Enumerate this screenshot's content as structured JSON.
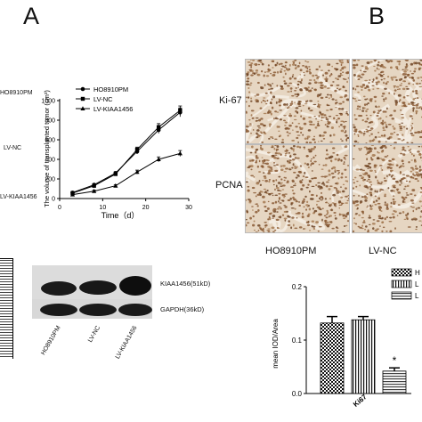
{
  "panels": {
    "a": "A",
    "b": "B"
  },
  "row_labels": [
    "HO8910PM",
    "LV-NC",
    "LV-KIAA1456"
  ],
  "growth": {
    "chart_data": {
      "type": "line",
      "xlabel": "Time（d）",
      "ylabel": "The volume of transplanted tumor (cm³)",
      "xlim": [
        0,
        30
      ],
      "ylim": [
        0,
        1000
      ],
      "xticks": [
        "0",
        "10",
        "20",
        "30"
      ],
      "yticks": [
        "0",
        "200",
        "400",
        "600",
        "800",
        "1000"
      ],
      "legend_position": "top-left",
      "x": [
        3,
        8,
        13,
        18,
        23,
        28
      ],
      "series": [
        {
          "name": "HO8910PM",
          "marker": "circle",
          "values": [
            60,
            140,
            260,
            480,
            700,
            880
          ],
          "errors": [
            10,
            12,
            15,
            25,
            35,
            45
          ]
        },
        {
          "name": "LV-NC",
          "marker": "square",
          "values": [
            55,
            130,
            250,
            500,
            730,
            900
          ],
          "errors": [
            10,
            12,
            15,
            25,
            35,
            45
          ]
        },
        {
          "name": "LV-KIAA1456",
          "marker": "triangle",
          "values": [
            40,
            75,
            130,
            270,
            400,
            460
          ],
          "errors": [
            8,
            10,
            12,
            20,
            25,
            30
          ]
        }
      ]
    }
  },
  "micro": {
    "row_labels": [
      "Ki-67",
      "PCNA"
    ],
    "col_labels": [
      "HO8910PM",
      "LV-NC"
    ]
  },
  "blot": {
    "bands": [
      "KIAA1456(51kD)",
      "GAPDH(36kD)"
    ],
    "lanes": [
      "HO8910PM",
      "LV-NC",
      "LV-KIAA1456"
    ]
  },
  "iod": {
    "chart_data": {
      "type": "bar",
      "ylabel": "mean IOD/Area",
      "categories": [
        "Ki67"
      ],
      "ylim": [
        0,
        0.2
      ],
      "yticks": [
        "0.0",
        "0.1",
        "0.2"
      ],
      "legend_position": "top-right",
      "legend": [
        "H",
        "L",
        "L"
      ],
      "series": [
        {
          "values": [
            0.132
          ],
          "errors": [
            0.012
          ]
        },
        {
          "values": [
            0.138
          ],
          "errors": [
            0.006
          ]
        },
        {
          "values": [
            0.042
          ],
          "errors": [
            0.006
          ]
        }
      ],
      "annotation": "*"
    }
  }
}
